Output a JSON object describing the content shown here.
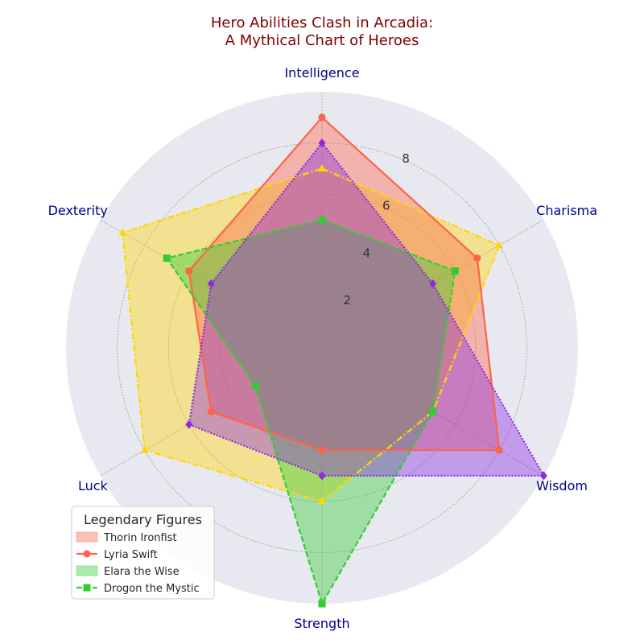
{
  "chart_data": {
    "type": "radar",
    "title_lines": [
      "Hero Abilities Clash in Arcadia:",
      "A Mythical Chart of Heroes"
    ],
    "categories": [
      "Intelligence",
      "Charisma",
      "Wisdom",
      "Strength",
      "Luck",
      "Dexterity"
    ],
    "rlim": [
      0,
      10
    ],
    "rticks": [
      2,
      4,
      6,
      8
    ],
    "grid": true,
    "background_color": "#e8e8f0",
    "series": [
      {
        "name": "",
        "values": [
          7,
          8,
          5,
          6,
          8,
          9
        ],
        "color": "#ffd700",
        "linestyle": "dashdot",
        "marker": "triangle"
      },
      {
        "name": "",
        "values": [
          9,
          7,
          8,
          4,
          5,
          6
        ],
        "color": "#ff6347",
        "linestyle": "solid",
        "marker": "circle"
      },
      {
        "name": "",
        "values": [
          5,
          6,
          5,
          10,
          3,
          7
        ],
        "color": "#32cd32",
        "linestyle": "dashed",
        "marker": "square"
      },
      {
        "name": "",
        "values": [
          8,
          5,
          10,
          5,
          6,
          5
        ],
        "color": "#8a2be2",
        "linestyle": "dotted",
        "marker": "diamond"
      }
    ],
    "legend": {
      "title": "Legendary Figures",
      "position": "lower-left",
      "entries": [
        {
          "label": "Thorin Ironfist",
          "kind": "patch",
          "color": "#ff6347"
        },
        {
          "label": "Lyria Swift",
          "kind": "line",
          "color": "#ff6347",
          "linestyle": "solid",
          "marker": "circle"
        },
        {
          "label": "Elara the Wise",
          "kind": "patch",
          "color": "#32cd32"
        },
        {
          "label": "Drogon the Mystic",
          "kind": "line",
          "color": "#32cd32",
          "linestyle": "dashed",
          "marker": "square"
        }
      ]
    }
  }
}
